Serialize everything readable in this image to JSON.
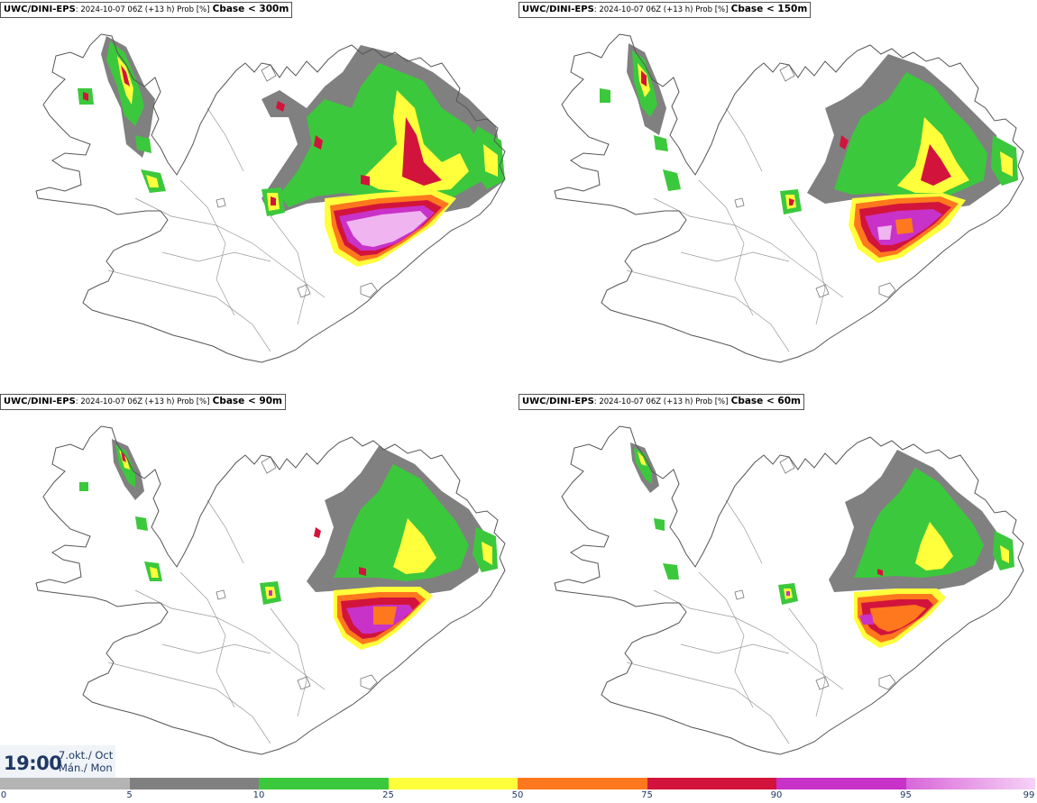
{
  "panels": [
    {
      "model": "UWC/DINI-EPS",
      "info": ": 2024-10-07 06Z (+13 h) Prob [%]",
      "param": "Cbase < 300m"
    },
    {
      "model": "UWC/DINI-EPS",
      "info": ": 2024-10-07 06Z (+13 h) Prob [%]",
      "param": "Cbase < 150m"
    },
    {
      "model": "UWC/DINI-EPS",
      "info": ": 2024-10-07 06Z (+13 h) Prob [%]",
      "param": "Cbase < 90m"
    },
    {
      "model": "UWC/DINI-EPS",
      "info": ": 2024-10-07 06Z (+13 h) Prob [%]",
      "param": "Cbase < 60m"
    }
  ],
  "valid_time": {
    "time": "19:00",
    "date_line1": "7.okt./ Oct",
    "date_line2": "Mán./ Mon"
  },
  "colorbar": {
    "labels": [
      "0",
      "5",
      "10",
      "25",
      "50",
      "75",
      "90",
      "95",
      "99"
    ],
    "colors": [
      "#ffffff",
      "#b4b4b4",
      "#808080",
      "#3cc83c",
      "#ffff3c",
      "#ff781e",
      "#d2143c",
      "#c832c8",
      "#f0b4f0"
    ]
  },
  "map_colors": {
    "g5": "#b4b4b4",
    "g10": "#808080",
    "green": "#3cc83c",
    "yellow": "#ffff3c",
    "orange": "#ff781e",
    "red": "#d2143c",
    "magenta": "#c832c8",
    "pink": "#f0b4f0"
  }
}
